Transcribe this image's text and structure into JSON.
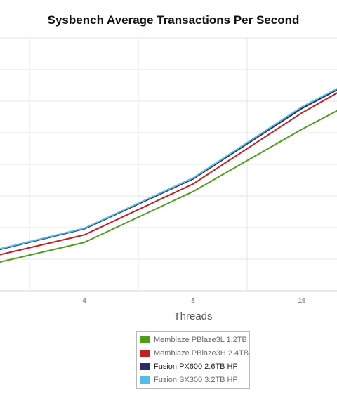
{
  "chart_data": {
    "type": "line",
    "title": "Sysbench Average Transactions Per Second",
    "xlabel": "Threads",
    "ylabel": "",
    "x_scale": "log2",
    "x_ticks": [
      4,
      8,
      16
    ],
    "x": [
      2,
      4,
      8,
      16,
      24
    ],
    "grid": true,
    "legend_position": "bottom",
    "series": [
      {
        "name": "Memblaze PBlaze3L 1.2TB",
        "color": "#4d9e1b",
        "values": [
          0.73,
          1.53,
          3.14,
          5.11,
          6.17
        ]
      },
      {
        "name": "Memblaze PBlaze3H 2.4TB",
        "color": "#c02126",
        "values": [
          0.96,
          1.77,
          3.38,
          5.63,
          6.77
        ]
      },
      {
        "name": "Fusion PX600 2.6TB HP",
        "color": "#2c2a6b",
        "values": [
          1.12,
          1.96,
          3.54,
          5.77,
          6.83
        ]
      },
      {
        "name": "Fusion SX300 3.2TB HP",
        "color": "#55bde8",
        "values": [
          1.14,
          1.98,
          3.57,
          5.82,
          6.86
        ]
      }
    ]
  }
}
